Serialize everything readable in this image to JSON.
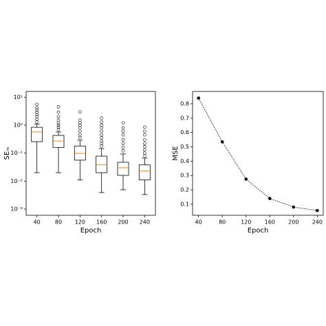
{
  "chart_data": [
    {
      "type": "box",
      "x_label": "Epoch",
      "y_label": "SEₘ",
      "log_scale": true,
      "categories": [
        "40",
        "80",
        "120",
        "160",
        "200",
        "240"
      ],
      "ylim": [
        0.0006,
        16
      ],
      "yticks": [
        {
          "value": 10,
          "label": "10¹"
        },
        {
          "value": 1,
          "label": "10⁰"
        },
        {
          "value": 0.1,
          "label": "10⁻¹"
        },
        {
          "value": 0.01,
          "label": "10⁻²"
        },
        {
          "value": 0.001,
          "label": "10⁻³"
        }
      ],
      "box_color": "#000000",
      "median_color": "#ff7f0e",
      "boxes": [
        {
          "low": 0.02,
          "q1": 0.257,
          "median": 0.57,
          "q3": 0.84,
          "high": 1.1,
          "outliers": [
            1.3,
            1.6,
            2,
            2.4,
            2.9,
            3.5,
            4.2,
            5.5
          ]
        },
        {
          "low": 0.02,
          "q1": 0.16,
          "median": 0.27,
          "q3": 0.43,
          "high": 0.57,
          "outliers": [
            0.7,
            0.85,
            1.0,
            1.2,
            1.5,
            2.0,
            2.9,
            4.5
          ]
        },
        {
          "low": 0.011,
          "q1": 0.056,
          "median": 0.098,
          "q3": 0.18,
          "high": 0.29,
          "outliers": [
            0.36,
            0.45,
            0.6,
            0.8,
            1.0,
            1.2,
            1.5,
            3.0
          ]
        },
        {
          "low": 0.0039,
          "q1": 0.02,
          "median": 0.038,
          "q3": 0.078,
          "high": 0.146,
          "outliers": [
            0.18,
            0.22,
            0.27,
            0.35,
            0.45,
            0.6,
            0.8,
            1.0,
            1.3,
            1.8
          ]
        },
        {
          "low": 0.0049,
          "q1": 0.016,
          "median": 0.03,
          "q3": 0.047,
          "high": 0.093,
          "outliers": [
            0.12,
            0.16,
            0.22,
            0.3,
            0.45,
            0.6,
            0.8,
            1.2
          ]
        },
        {
          "low": 0.0033,
          "q1": 0.011,
          "median": 0.023,
          "q3": 0.038,
          "high": 0.066,
          "outliers": [
            0.08,
            0.1,
            0.13,
            0.17,
            0.22,
            0.3,
            0.45,
            0.6,
            0.85
          ]
        }
      ]
    },
    {
      "type": "line",
      "x_label": "Epoch",
      "y_label": "MSE",
      "color": "#000000",
      "line_style": "dotted",
      "x": [
        40,
        80,
        120,
        160,
        200,
        240
      ],
      "values": [
        0.84,
        0.535,
        0.275,
        0.14,
        0.08,
        0.056
      ],
      "xlim": [
        30,
        250
      ],
      "xticks": [
        40,
        80,
        120,
        160,
        200,
        240
      ],
      "ylim": [
        0.023,
        0.886
      ],
      "yticks": [
        0.1,
        0.2,
        0.3,
        0.4,
        0.5,
        0.6,
        0.7,
        0.8
      ]
    }
  ]
}
